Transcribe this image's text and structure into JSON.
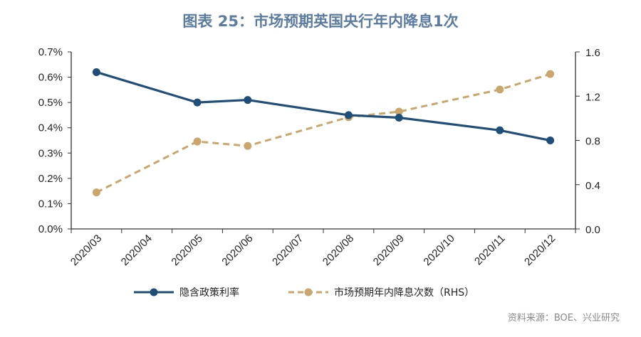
{
  "title": "图表 25：市场预期英国央行年内降息1次",
  "source": "资料来源：BOE、兴业研究",
  "chart_data": {
    "type": "line",
    "title": "图表 25：市场预期英国央行年内降息1次",
    "categories": [
      "2020/03",
      "2020/04",
      "2020/05",
      "2020/06",
      "2020/07",
      "2020/08",
      "2020/09",
      "2020/10",
      "2020/11",
      "2020/12"
    ],
    "left_axis": {
      "ylim": [
        0,
        0.7
      ],
      "ticks": [
        "0.0%",
        "0.1%",
        "0.2%",
        "0.3%",
        "0.4%",
        "0.5%",
        "0.6%",
        "0.7%"
      ],
      "unit": "%"
    },
    "right_axis": {
      "ylim": [
        0,
        1.6
      ],
      "ticks": [
        "0.0",
        "0.4",
        "0.8",
        "1.2",
        "1.6"
      ]
    },
    "grid": false,
    "legend_position": "bottom",
    "series": [
      {
        "name": "隐含政策利率",
        "axis": "left",
        "color": "#1f4e79",
        "style": "solid",
        "values": [
          0.62,
          null,
          0.5,
          0.51,
          null,
          0.45,
          0.44,
          null,
          0.39,
          0.35
        ]
      },
      {
        "name": "市场预期年内降息次数（RHS）",
        "axis": "right",
        "color": "#c9a66b",
        "style": "dashed",
        "values": [
          0.33,
          null,
          0.79,
          0.75,
          null,
          1.01,
          1.06,
          null,
          1.26,
          1.4
        ]
      }
    ]
  }
}
